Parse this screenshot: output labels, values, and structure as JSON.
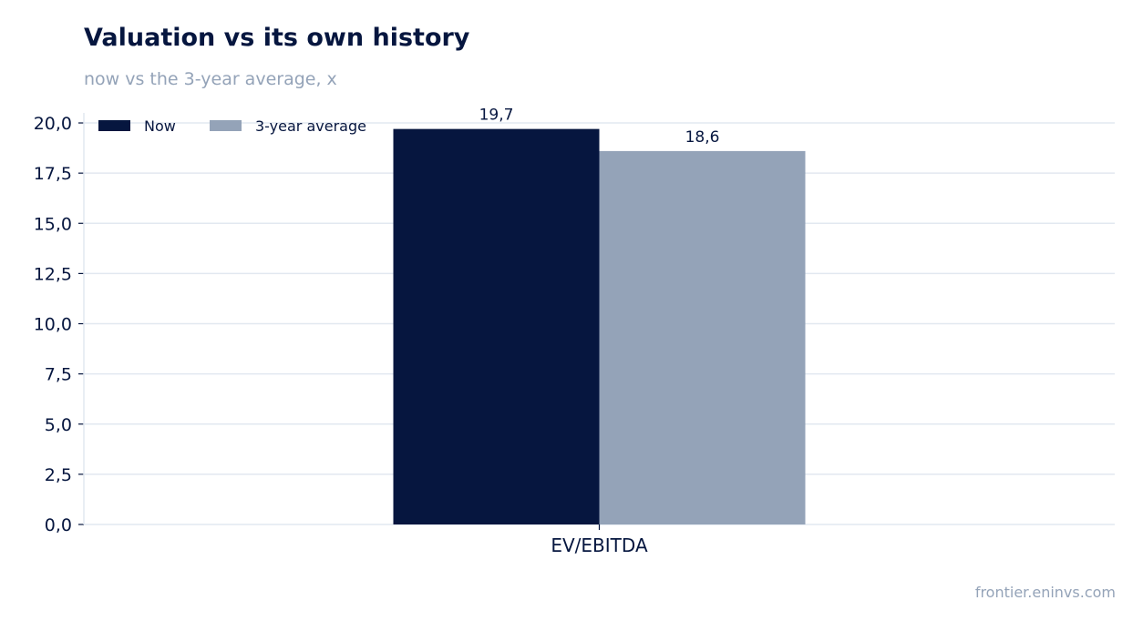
{
  "header": {
    "title": "Valuation vs its own history",
    "subtitle": "now vs the 3-year average, x"
  },
  "footer": {
    "source": "frontier.eninvs.com"
  },
  "chart_data": {
    "type": "bar",
    "categories": [
      "EV/EBITDA"
    ],
    "series": [
      {
        "name": "Now",
        "values": [
          19.7
        ],
        "labels": [
          "19,7"
        ],
        "color": "#06163f"
      },
      {
        "name": "3-year average",
        "values": [
          18.6
        ],
        "labels": [
          "18,6"
        ],
        "color": "#94a3b8"
      }
    ],
    "ylim": [
      0,
      20.5
    ],
    "yticks": [
      0,
      2.5,
      5,
      7.5,
      10,
      12.5,
      15,
      17.5,
      20
    ],
    "ytick_labels": [
      "0,0",
      "2,5",
      "5,0",
      "7,5",
      "10,0",
      "12,5",
      "15,0",
      "17,5",
      "20,0"
    ],
    "xlabel": "",
    "ylabel": "",
    "grid": true,
    "legend_position": "top-left",
    "colors": {
      "axis": "#06163f",
      "grid": "#e2e8f0",
      "text": "#06163f",
      "muted": "#94a3b8"
    }
  }
}
